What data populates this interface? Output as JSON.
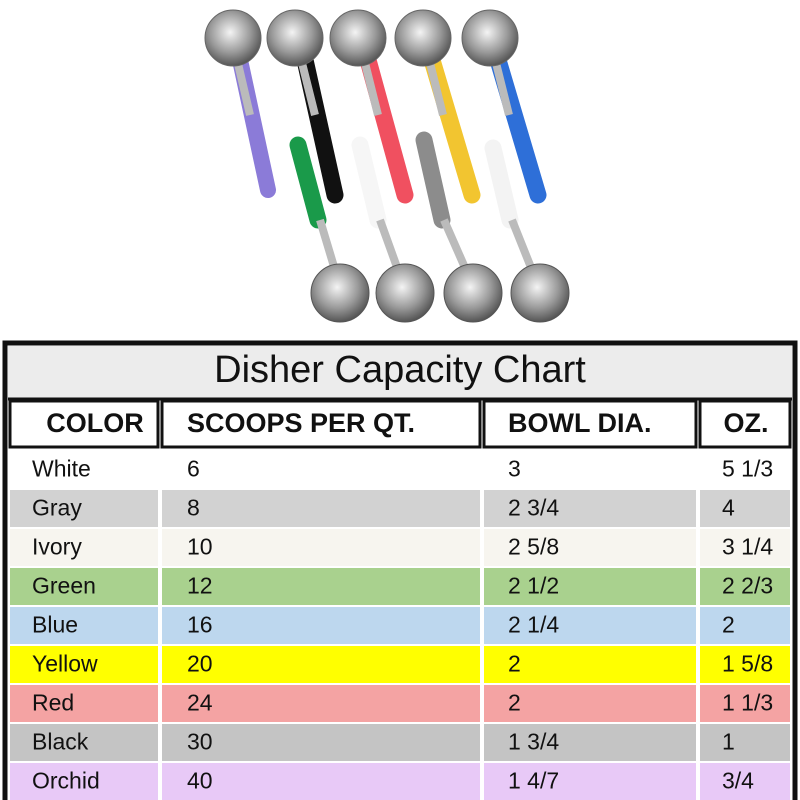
{
  "table": {
    "title": "Disher Capacity Chart",
    "header": [
      "COLOR",
      "SCOOPS PER QT.",
      "BOWL DIA.",
      "OZ."
    ],
    "rows": [
      [
        "White",
        "6",
        "3",
        "5 1/3"
      ],
      [
        "Gray",
        "8",
        "2 3/4",
        "4"
      ],
      [
        "Ivory",
        "10",
        "2 5/8",
        "3 1/4"
      ],
      [
        "Green",
        "12",
        "2 1/2",
        "2 2/3"
      ],
      [
        "Blue",
        "16",
        "2 1/4",
        "2"
      ],
      [
        "Yellow",
        "20",
        "2",
        "1 5/8"
      ],
      [
        "Red",
        "24",
        "2",
        "1 1/3"
      ],
      [
        "Black",
        "30",
        "1 3/4",
        "1"
      ],
      [
        "Orchid",
        "40",
        "1 4/7",
        "3/4"
      ]
    ],
    "row_colors": [
      "#ffffff",
      "#d2d2d2",
      "#f7f5ef",
      "#a9d18e",
      "#bdd7ee",
      "#ffff00",
      "#f4a3a3",
      "#c4c4c4",
      "#e8c9f7"
    ]
  }
}
